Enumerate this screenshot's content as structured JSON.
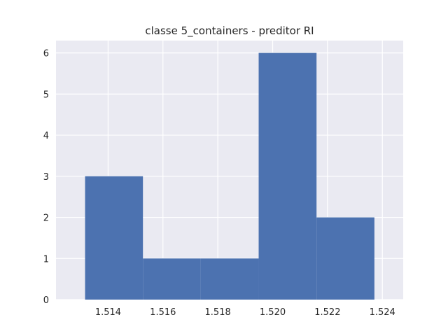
{
  "chart_data": {
    "type": "bar",
    "title": "classe 5_containers - preditor RI",
    "xlabel": "",
    "ylabel": "",
    "bins": [
      {
        "x0": 1.51316,
        "x1": 1.51527,
        "count": 3
      },
      {
        "x0": 1.51527,
        "x1": 1.51738,
        "count": 1
      },
      {
        "x0": 1.51738,
        "x1": 1.51949,
        "count": 1
      },
      {
        "x0": 1.51949,
        "x1": 1.5216,
        "count": 6
      },
      {
        "x0": 1.5216,
        "x1": 1.52371,
        "count": 2
      }
    ],
    "xlim": [
      1.5121,
      1.52476
    ],
    "ylim": [
      0,
      6.3
    ],
    "xticks": [
      "1.514",
      "1.516",
      "1.518",
      "1.520",
      "1.522",
      "1.524"
    ],
    "yticks": [
      "0",
      "1",
      "2",
      "3",
      "4",
      "5",
      "6"
    ],
    "grid": true,
    "colors": {
      "bar": "#4c72b0",
      "plot_bg": "#eaeaf2",
      "grid": "#ffffff"
    }
  }
}
